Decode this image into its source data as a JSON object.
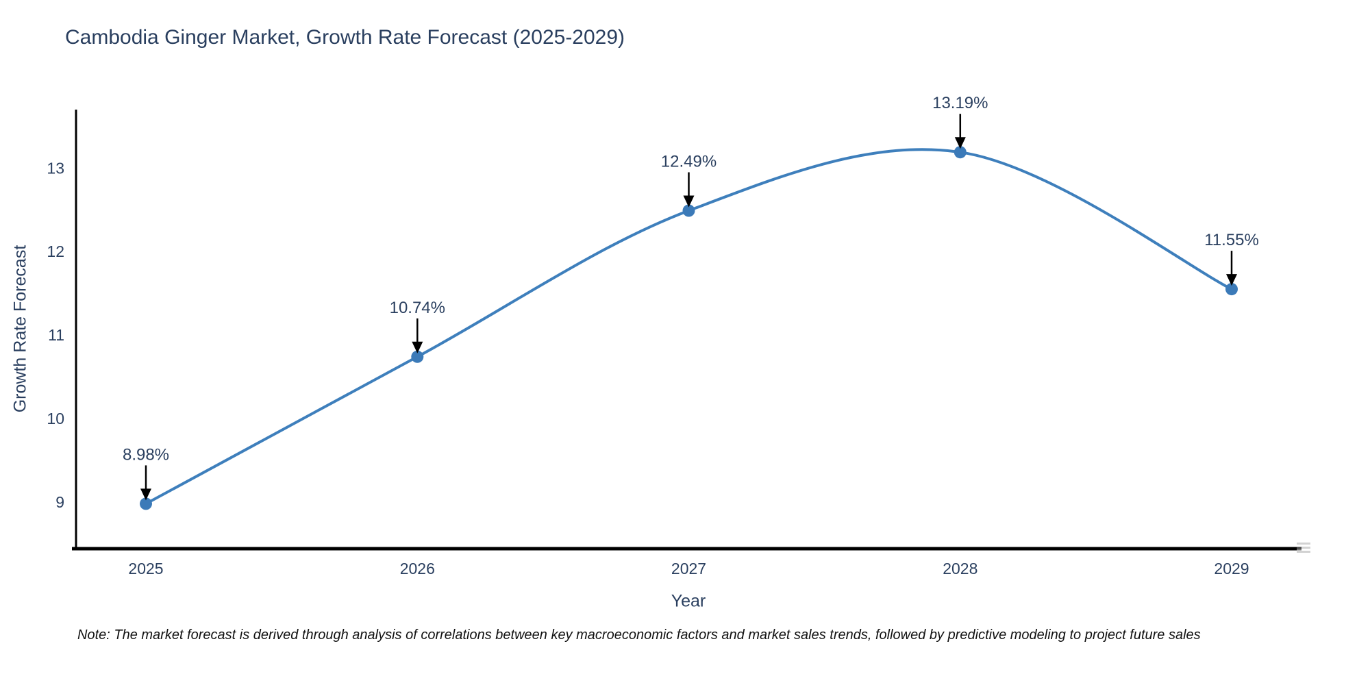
{
  "title": "Cambodia Ginger Market, Growth Rate Forecast (2025-2029)",
  "note": "Note: The market forecast is derived through analysis of correlations between key macroeconomic factors and market sales trends, followed by predictive modeling to project future sales",
  "chart_data": {
    "type": "line",
    "title": "Cambodia Ginger Market, Growth Rate Forecast (2025-2029)",
    "xlabel": "Year",
    "ylabel": "Growth Rate Forecast",
    "categories": [
      "2025",
      "2026",
      "2027",
      "2028",
      "2029"
    ],
    "series": [
      {
        "name": "Growth Rate Forecast",
        "values": [
          8.98,
          10.74,
          12.49,
          13.19,
          11.55
        ]
      }
    ],
    "annotations": [
      "8.98%",
      "10.74%",
      "12.49%",
      "13.19%",
      "11.55%"
    ],
    "yticks": [
      9,
      10,
      11,
      12,
      13
    ],
    "ylim": [
      8.45,
      13.7
    ],
    "grid": false,
    "legend_position": "none",
    "line_shape": "spline",
    "colors": {
      "line": "#3e7fbc",
      "marker": "#3b7ab8",
      "axis": "#000000",
      "text": "#2a3f5f",
      "annotation_arrow": "#000000",
      "background": "#ffffff"
    }
  }
}
